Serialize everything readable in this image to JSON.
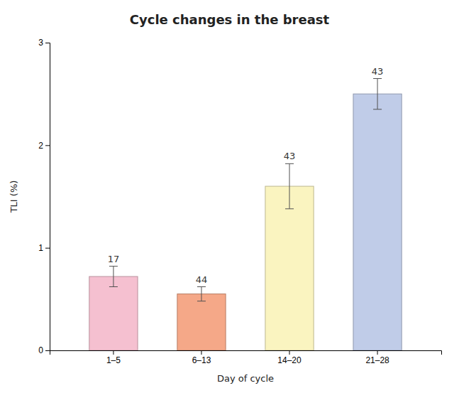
{
  "chart_data": {
    "type": "bar",
    "title": "Cycle changes in the breast",
    "xlabel": "Day of cycle",
    "ylabel": "TLI (%)",
    "categories": [
      "1–5",
      "6–13",
      "14–20",
      "21–28"
    ],
    "values": [
      0.72,
      0.55,
      1.6,
      2.5
    ],
    "errors": [
      0.1,
      0.07,
      0.22,
      0.15
    ],
    "annotations": [
      "17",
      "44",
      "43",
      "43"
    ],
    "colors": [
      "#f5c0d0",
      "#f5a888",
      "#faf4c0",
      "#c0cce8"
    ],
    "ylim": [
      0,
      3
    ],
    "yticks": [
      0,
      1,
      2,
      3
    ],
    "grid": false
  }
}
